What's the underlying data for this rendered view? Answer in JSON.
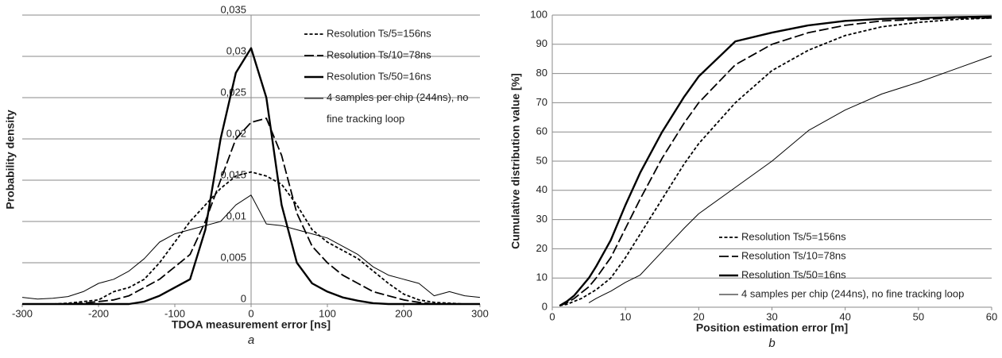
{
  "chart_data": [
    {
      "type": "line",
      "caption": "a",
      "x_label": "TDOA measurement error [ns]",
      "y_label": "Probability density",
      "x": [
        -300,
        -280,
        -260,
        -240,
        -220,
        -200,
        -180,
        -160,
        -140,
        -120,
        -100,
        -80,
        -60,
        -40,
        -20,
        0,
        20,
        40,
        60,
        80,
        100,
        120,
        140,
        160,
        180,
        200,
        220,
        240,
        260,
        280,
        300
      ],
      "series": [
        {
          "name": "Resolution Ts/5=156ns",
          "color": "#000000",
          "style": "short-dash",
          "values": [
            0,
            0,
            0,
            0.0001,
            0.0003,
            0.0005,
            0.0015,
            0.002,
            0.003,
            0.005,
            0.0075,
            0.01,
            0.012,
            0.014,
            0.0155,
            0.016,
            0.0155,
            0.0145,
            0.012,
            0.009,
            0.0075,
            0.0065,
            0.0055,
            0.004,
            0.0025,
            0.0012,
            0.0005,
            0.0002,
            0.0001,
            0,
            0
          ]
        },
        {
          "name": "Resolution Ts/10=78ns",
          "color": "#000000",
          "style": "long-dash",
          "values": [
            0,
            0,
            0,
            0,
            0.0001,
            0.0003,
            0.0005,
            0.001,
            0.002,
            0.003,
            0.0045,
            0.006,
            0.01,
            0.015,
            0.02,
            0.022,
            0.0225,
            0.018,
            0.011,
            0.007,
            0.005,
            0.0035,
            0.0025,
            0.0015,
            0.001,
            0.0005,
            0.0002,
            0,
            0,
            0,
            0
          ]
        },
        {
          "name": "Resolution Ts/50=16ns",
          "color": "#000000",
          "style": "thick",
          "values": [
            0,
            0,
            0,
            0,
            0,
            0,
            0,
            0,
            0.0003,
            0.001,
            0.002,
            0.003,
            0.009,
            0.02,
            0.028,
            0.031,
            0.025,
            0.012,
            0.005,
            0.0025,
            0.0015,
            0.0008,
            0.0004,
            0.0001,
            0,
            0,
            0,
            0,
            0,
            0,
            0
          ]
        },
        {
          "name": "4 samples per chip (244ns), no fine tracking loop",
          "color": "#000000",
          "style": "thin",
          "values": [
            0.0008,
            0.0006,
            0.0007,
            0.0009,
            0.0015,
            0.0025,
            0.003,
            0.004,
            0.0055,
            0.0075,
            0.0085,
            0.009,
            0.0095,
            0.01,
            0.012,
            0.0132,
            0.0097,
            0.0095,
            0.009,
            0.0085,
            0.008,
            0.007,
            0.006,
            0.0045,
            0.0035,
            0.003,
            0.0025,
            0.001,
            0.0015,
            0.001,
            0.0008
          ]
        }
      ],
      "xlim": [
        -300,
        300
      ],
      "xticks": [
        -300,
        -200,
        -100,
        0,
        100,
        200,
        300
      ],
      "ylim": [
        0,
        0.035
      ],
      "yticks": [
        0,
        {
          "value": 0.005,
          "label": "0,005"
        },
        {
          "value": 0.01,
          "label": "0,01"
        },
        {
          "value": 0.015,
          "label": "0,015"
        },
        {
          "value": 0.02,
          "label": "0,02"
        },
        {
          "value": 0.025,
          "label": "0,025"
        },
        {
          "value": 0.03,
          "label": "0,03"
        },
        {
          "value": 0.035,
          "label": "0,035"
        }
      ],
      "grid": true,
      "legend": "top-right"
    },
    {
      "type": "line",
      "caption": "b",
      "x_label": "Position estimation error [m]",
      "y_label": "Cumulative distribution value [%]",
      "x": [
        1,
        2,
        3,
        4,
        5,
        6,
        8,
        10,
        12,
        15,
        18,
        20,
        25,
        30,
        35,
        40,
        45,
        50,
        55,
        60
      ],
      "series": [
        {
          "name": "Resolution Ts/5=156ns",
          "color": "#000000",
          "style": "short-dash",
          "values": [
            0.5,
            1,
            2,
            3,
            4.5,
            6,
            10,
            17,
            25,
            37,
            49,
            56,
            70,
            81,
            88,
            93,
            96,
            97.5,
            98.5,
            99
          ]
        },
        {
          "name": "Resolution Ts/10=78ns",
          "color": "#000000",
          "style": "long-dash",
          "values": [
            0.5,
            1.5,
            3,
            5,
            7,
            10,
            17,
            27,
            37,
            51,
            63,
            70,
            83,
            90,
            94,
            96.5,
            98,
            98.5,
            99,
            99
          ]
        },
        {
          "name": "Resolution Ts/50=16ns",
          "color": "#000000",
          "style": "thick",
          "values": [
            0.5,
            2,
            4,
            7,
            10,
            14,
            23,
            35,
            46,
            60,
            72,
            79,
            91,
            94,
            96.5,
            98,
            98.7,
            99,
            99.3,
            99.5
          ]
        },
        {
          "name": "4 samples per chip (244ns), no fine tracking loop",
          "color": "#000000",
          "style": "thin",
          "values": [
            null,
            null,
            null,
            null,
            1.5,
            3,
            5.5,
            8.5,
            11,
            19,
            27,
            32,
            41,
            50,
            60.5,
            67.5,
            73,
            77,
            81.5,
            86
          ]
        }
      ],
      "xlim": [
        0,
        60
      ],
      "xticks": [
        0,
        10,
        20,
        30,
        40,
        50,
        60
      ],
      "ylim": [
        0,
        100
      ],
      "yticks": [
        0,
        10,
        20,
        30,
        40,
        50,
        60,
        70,
        80,
        90,
        100
      ],
      "grid": true,
      "legend": "bottom-right"
    }
  ]
}
